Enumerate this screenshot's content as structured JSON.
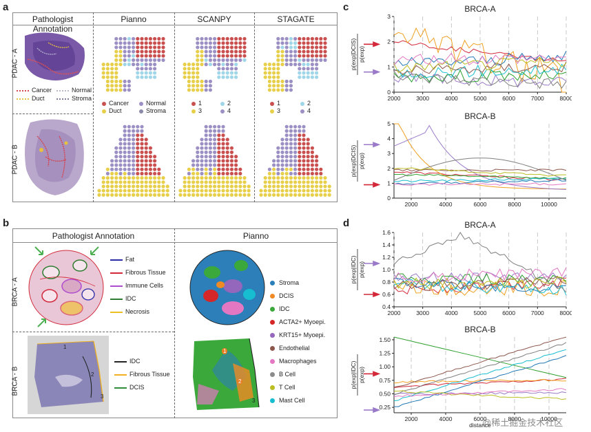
{
  "letters": {
    "a": "a",
    "b": "b",
    "c": "c",
    "d": "d"
  },
  "panel_a": {
    "col_titles": [
      "Pathologist Annotation",
      "Pianno",
      "SCANPY",
      "STAGATE"
    ],
    "row_labels": [
      "PDAC - A",
      "PDAC - B"
    ],
    "path_legend": [
      {
        "label": "Cancer",
        "color": "#d64550"
      },
      {
        "label": "Normal",
        "color": "#b8b8c8"
      },
      {
        "label": "Duct",
        "color": "#e8c23a"
      },
      {
        "label": "Stroma",
        "color": "#7a7a9a"
      }
    ],
    "pianno_legend": [
      {
        "label": "Cancer",
        "color": "#c9504f"
      },
      {
        "label": "Normal",
        "color": "#9b8fc4"
      },
      {
        "label": "Duct",
        "color": "#e7cf4a"
      },
      {
        "label": "Stroma",
        "color": "#8a8aa8"
      }
    ],
    "num_legend": [
      {
        "label": "1",
        "color": "#c9504f"
      },
      {
        "label": "2",
        "color": "#9fd6e8"
      },
      {
        "label": "3",
        "color": "#e7cf4a"
      },
      {
        "label": "4",
        "color": "#9b8fc4"
      }
    ]
  },
  "panel_b": {
    "col_titles": [
      "Pathologist Annotation",
      "Pianno"
    ],
    "row_labels": [
      "BRCA - A",
      "BRCA - B"
    ],
    "legend_a": [
      {
        "label": "Fat",
        "color": "#2a2aa8"
      },
      {
        "label": "Fibrous Tissue",
        "color": "#d2283a"
      },
      {
        "label": "Immune Cells",
        "color": "#b04ad0"
      },
      {
        "label": "IDC",
        "color": "#2e7d32"
      },
      {
        "label": "Necrosis",
        "color": "#f0c020"
      }
    ],
    "legend_b": [
      {
        "label": "IDC",
        "color": "#222222"
      },
      {
        "label": "Fibrous Tissue",
        "color": "#f0b020"
      },
      {
        "label": "DCIS",
        "color": "#2e8b3a"
      }
    ],
    "cell_legend": [
      {
        "label": "Stroma",
        "color": "#2c7fb8"
      },
      {
        "label": "DCIS",
        "color": "#f08a24"
      },
      {
        "label": "IDC",
        "color": "#3aa83a"
      },
      {
        "label": "ACTA2+ Myoepi.",
        "color": "#d62728"
      },
      {
        "label": "KRT15+ Myoepi.",
        "color": "#9467bd"
      },
      {
        "label": "Endothelial",
        "color": "#8c564b"
      },
      {
        "label": "Macrophages",
        "color": "#e377c2"
      },
      {
        "label": "B Cell",
        "color": "#8a8a8a"
      },
      {
        "label": "T Cell",
        "color": "#bcbd22"
      },
      {
        "label": "Mast Cell",
        "color": "#17becf"
      }
    ],
    "region_numbers": [
      "1",
      "2",
      "3"
    ]
  },
  "chart_data": [
    {
      "id": "c1",
      "type": "line",
      "title": "BRCA-A",
      "ylabel_top": "p(exp|DCIS)",
      "ylabel_bottom": "p(exp)",
      "xlim": [
        2000,
        8000
      ],
      "ylim": [
        0,
        3
      ],
      "xticks": [
        "2000",
        "3000",
        "4000",
        "5000",
        "6000",
        "7000",
        "8000"
      ],
      "yticks": [
        "0",
        "1",
        "2",
        "3"
      ],
      "arrows": [
        {
          "y": 1.9,
          "color": "#d2283a"
        },
        {
          "y": 0.8,
          "color": "#9a7ac8"
        }
      ]
    },
    {
      "id": "c2",
      "type": "line",
      "title": "BRCA-B",
      "ylabel_top": "p(exp|DCIS)",
      "ylabel_bottom": "p(exp)",
      "xlim": [
        1000,
        11000
      ],
      "ylim": [
        0,
        5
      ],
      "xticks": [
        "2000",
        "4000",
        "6000",
        "8000",
        "10000"
      ],
      "yticks": [
        "0",
        "1",
        "2",
        "3",
        "4",
        "5"
      ],
      "arrows": [
        {
          "y": 3.6,
          "color": "#9a7ac8"
        },
        {
          "y": 0.9,
          "color": "#d2283a"
        }
      ]
    },
    {
      "id": "d1",
      "type": "line",
      "title": "BRCA-A",
      "ylabel_top": "p(exp|IDC)",
      "ylabel_bottom": "p(exp)",
      "xlim": [
        2000,
        8000
      ],
      "ylim": [
        0.4,
        1.6
      ],
      "xticks": [
        "2000",
        "3000",
        "4000",
        "5000",
        "6000",
        "7000",
        "8000"
      ],
      "yticks": [
        "0.4",
        "0.6",
        "0.8",
        "1.0",
        "1.2",
        "1.4",
        "1.6"
      ],
      "arrows": [
        {
          "y": 1.1,
          "color": "#9a7ac8"
        },
        {
          "y": 0.6,
          "color": "#d2283a"
        }
      ]
    },
    {
      "id": "d2",
      "type": "line",
      "title": "BRCA-B",
      "ylabel_top": "p(exp|IDC)",
      "ylabel_bottom": "p(exp)",
      "xlabel": "distance",
      "xlim": [
        1000,
        11000
      ],
      "ylim": [
        0.15,
        1.55
      ],
      "xticks": [
        "2000",
        "4000",
        "6000",
        "8000",
        "10000"
      ],
      "yticks": [
        "0.25",
        "0.50",
        "0.75",
        "1.00",
        "1.25",
        "1.50"
      ],
      "arrows": [
        {
          "y": 0.87,
          "color": "#d2283a"
        },
        {
          "y": 0.2,
          "color": "#9a7ac8"
        }
      ]
    }
  ],
  "series_colors": [
    "#d2283a",
    "#f0a020",
    "#9a7ac8",
    "#2ca02c",
    "#1f77b4",
    "#17becf",
    "#7f7f7f",
    "#8c564b",
    "#bcbd22",
    "#e377c2"
  ],
  "watermark": "@稀土掘金技术社区"
}
